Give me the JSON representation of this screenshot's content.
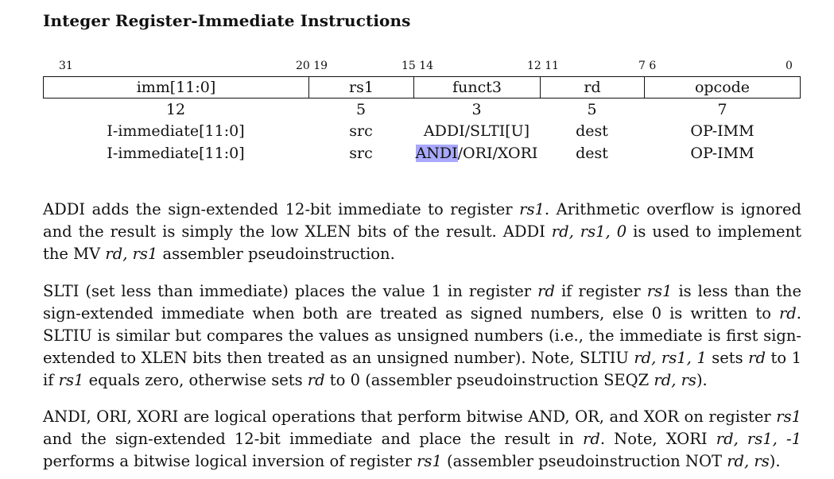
{
  "heading": "Integer Register-Immediate Instructions",
  "bit_positions": [
    "31",
    "20 19",
    "15 14",
    "12 11",
    "7 6",
    "0"
  ],
  "fields": [
    "imm[11:0]",
    "rs1",
    "funct3",
    "rd",
    "opcode"
  ],
  "widths": [
    "12",
    "5",
    "3",
    "5",
    "7"
  ],
  "row1": [
    "I-immediate[11:0]",
    "src",
    "ADDI/SLTI[U]",
    "dest",
    "OP-IMM"
  ],
  "row2": {
    "imm": "I-immediate[11:0]",
    "rs1": "src",
    "funct3_highlighted": "ANDI",
    "funct3_rest": "/ORI/XORI",
    "rd": "dest",
    "opcode": "OP-IMM"
  },
  "para1": {
    "t1": "ADDI adds the sign-extended 12-bit immediate to register ",
    "i1": "rs1",
    "t2": ". Arithmetic overflow is ignored and the result is simply the low XLEN bits of the result. ADDI ",
    "i2": "rd, rs1, 0",
    "t3": " is used to implement the MV ",
    "i3": "rd, rs1",
    "t4": " assembler pseudoinstruction."
  },
  "para2": {
    "t1": "SLTI (set less than immediate) places the value 1 in register ",
    "i1": "rd",
    "t2": " if register ",
    "i2": "rs1",
    "t3": " is less than the sign-extended immediate when both are treated as signed numbers, else 0 is written to ",
    "i3": "rd",
    "t4": ". SLTIU is similar but compares the values as unsigned numbers (i.e., the immediate is first sign-extended to XLEN bits then treated as an unsigned number). Note, SLTIU ",
    "i4": "rd, rs1, 1",
    "t5": " sets ",
    "i5": "rd",
    "t6": " to 1 if ",
    "i6": "rs1",
    "t7": " equals zero, otherwise sets ",
    "i7": "rd",
    "t8": " to 0 (assembler pseudoinstruction SEQZ ",
    "i8": "rd, rs",
    "t9": ")."
  },
  "para3": {
    "t1": "ANDI, ORI, XORI are logical operations that perform bitwise AND, OR, and XOR on register ",
    "i1": "rs1",
    "t2": " and the sign-extended 12-bit immediate and place the result in ",
    "i2": "rd",
    "t3": ". Note, XORI ",
    "i3": "rd, rs1, -1",
    "t4": " performs a bitwise logical inversion of register ",
    "i4": "rs1",
    "t5": " (assembler pseudoinstruction NOT ",
    "i5": "rd, rs",
    "t6": ")."
  }
}
